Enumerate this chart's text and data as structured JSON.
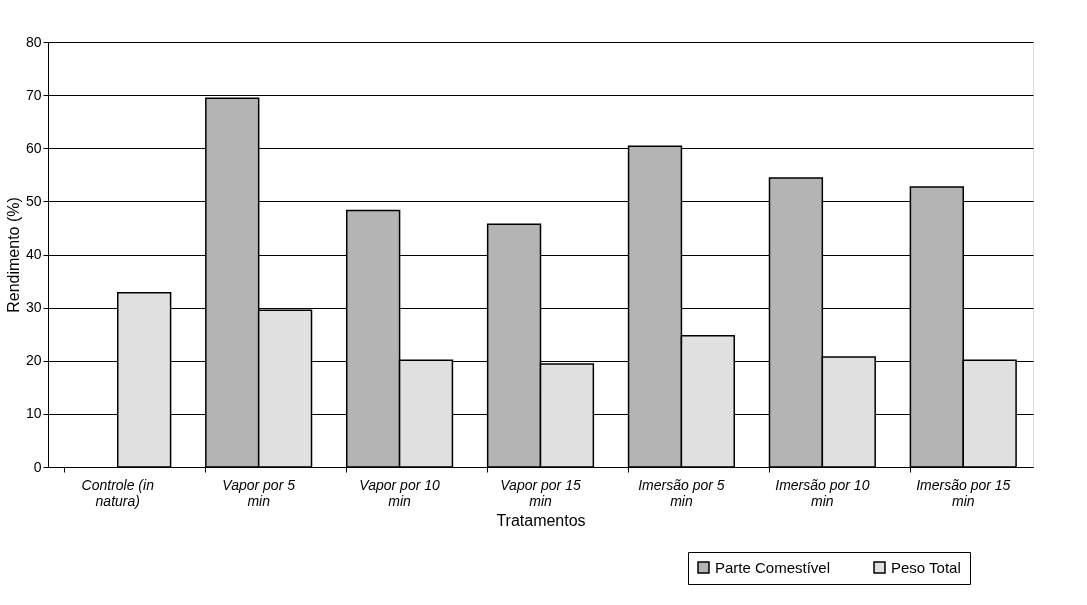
{
  "chart_data": {
    "type": "bar",
    "xlabel": "Tratamentos",
    "ylabel": "Rendimento (%)",
    "categories": [
      "Controle (in natura)",
      "Vapor  por 5 min",
      "Vapor por 10 min",
      "Vapor por 15 min",
      "Imersão por 5 min",
      "Imersão por 10 min",
      "Imersão por 15 min"
    ],
    "series": [
      {
        "name": "Parte Comestível",
        "color": "#b4b4b4",
        "values": [
          null,
          69.4,
          48.3,
          45.7,
          60.4,
          54.4,
          52.7
        ]
      },
      {
        "name": "Peso Total",
        "color": "#e0e0e0",
        "values": [
          32.8,
          29.5,
          20.1,
          19.4,
          24.7,
          20.7,
          20.1
        ]
      }
    ],
    "ylim": [
      0,
      80
    ],
    "yticks": [
      0,
      10,
      20,
      30,
      40,
      50,
      60,
      70,
      80
    ],
    "grid": "y",
    "legend": "bottom right"
  }
}
